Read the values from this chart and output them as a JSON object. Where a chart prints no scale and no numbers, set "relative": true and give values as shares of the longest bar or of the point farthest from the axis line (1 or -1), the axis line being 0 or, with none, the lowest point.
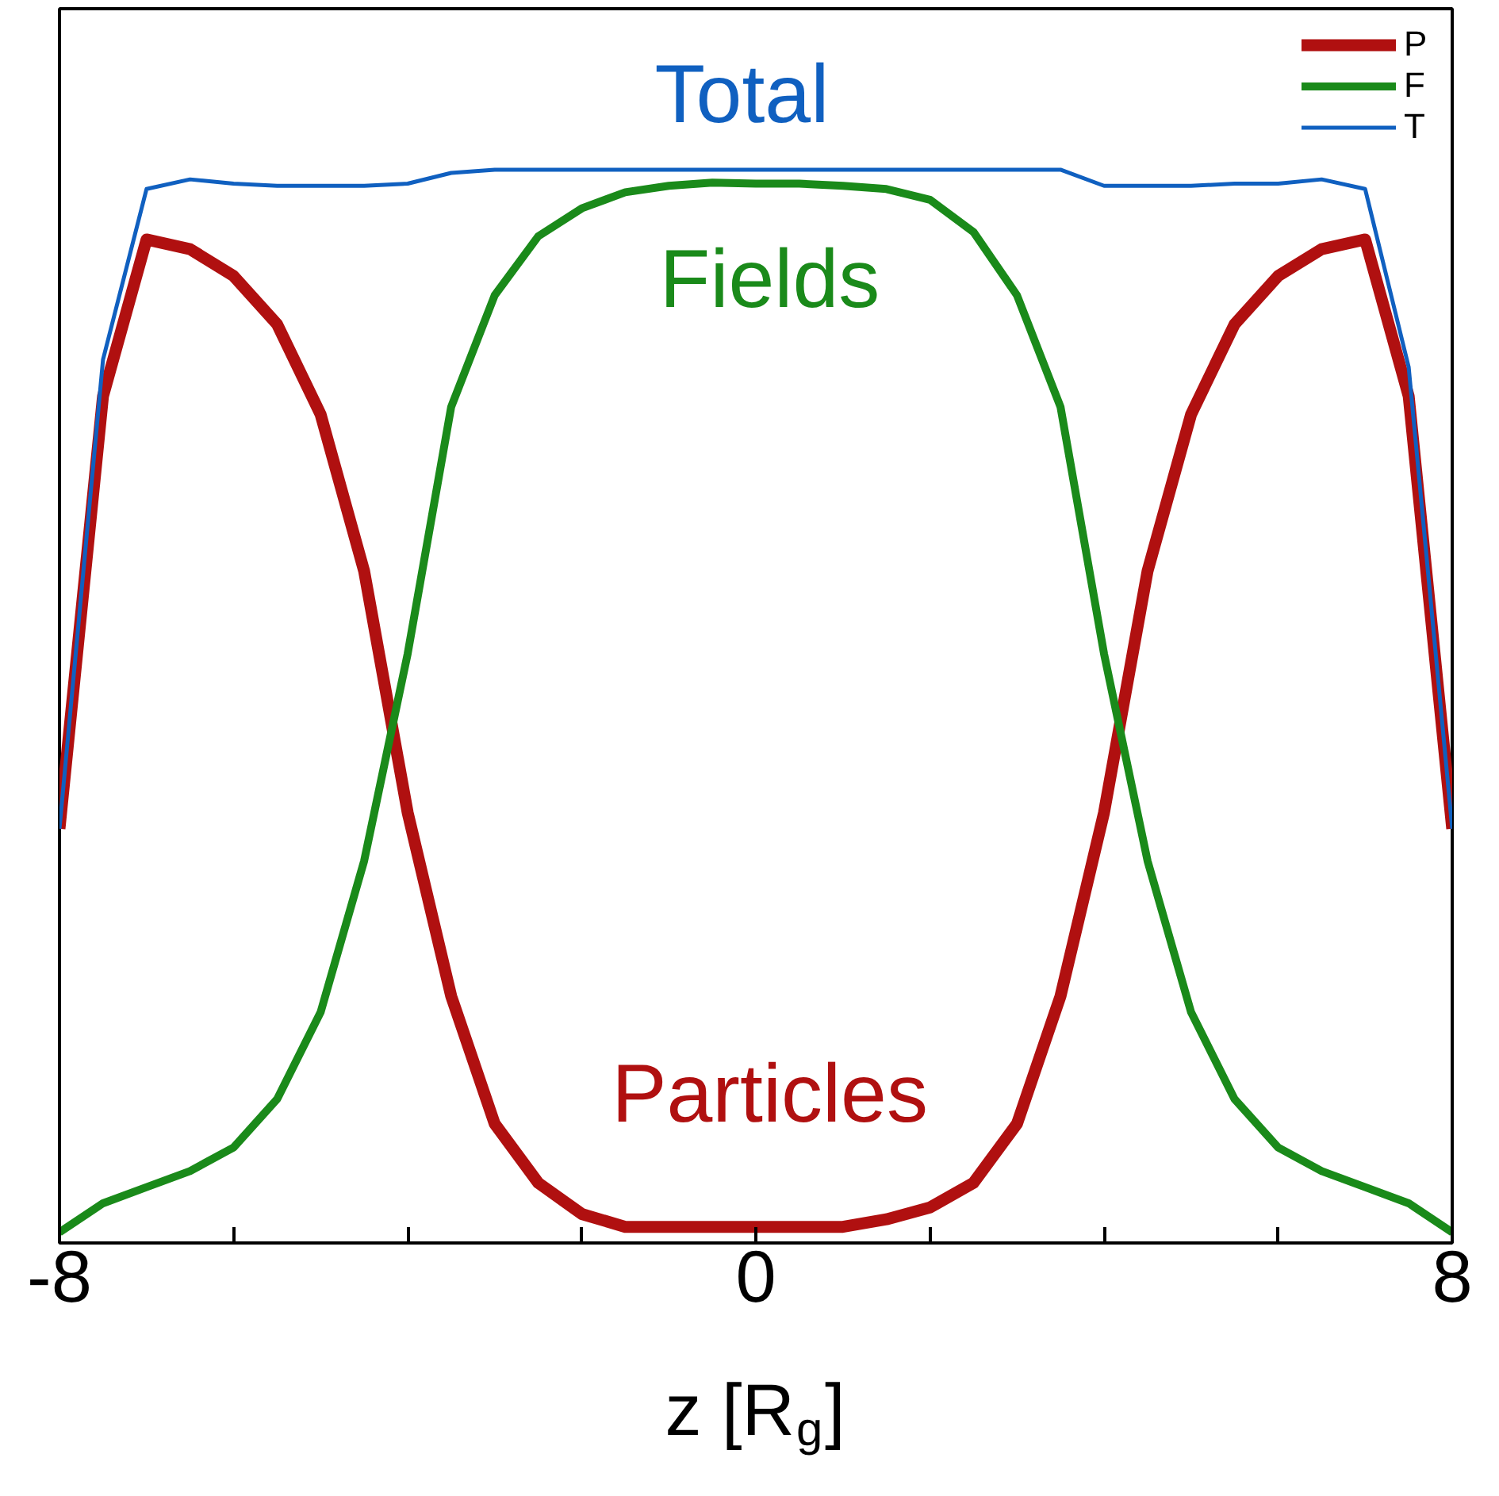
{
  "chart_data": {
    "type": "line",
    "relative": true,
    "xlabel": "z [R$_{g}$]",
    "x": [
      -8,
      -7.5,
      -7,
      -6.5,
      -6,
      -5.5,
      -5,
      -4.5,
      -4,
      -3.5,
      -3,
      -2.5,
      -2,
      -1.5,
      -1,
      -0.5,
      0,
      0.5,
      1,
      1.5,
      2,
      2.5,
      3,
      3.5,
      4,
      4.5,
      5,
      5.5,
      6,
      6.5,
      7,
      7.5,
      8
    ],
    "series": [
      {
        "name": "P",
        "color": "#b01010",
        "values": [
          0.386,
          0.789,
          0.935,
          0.926,
          0.901,
          0.856,
          0.772,
          0.626,
          0.401,
          0.23,
          0.111,
          0.056,
          0.027,
          0.015,
          0.015,
          0.015,
          0.015,
          0.015,
          0.015,
          0.022,
          0.033,
          0.056,
          0.111,
          0.23,
          0.401,
          0.626,
          0.772,
          0.856,
          0.901,
          0.926,
          0.935,
          0.789,
          0.386
        ]
      },
      {
        "name": "F",
        "color": "#1a8a1a",
        "values": [
          0.01,
          0.037,
          0.052,
          0.067,
          0.089,
          0.134,
          0.215,
          0.356,
          0.549,
          0.779,
          0.883,
          0.938,
          0.964,
          0.979,
          0.985,
          0.988,
          0.987,
          0.987,
          0.985,
          0.982,
          0.972,
          0.942,
          0.883,
          0.779,
          0.549,
          0.356,
          0.215,
          0.134,
          0.089,
          0.067,
          0.052,
          0.037,
          0.01
        ]
      },
      {
        "name": "T",
        "color": "#1060c0",
        "values": [
          0.386,
          0.823,
          0.982,
          0.991,
          0.987,
          0.985,
          0.985,
          0.985,
          0.987,
          0.997,
          1,
          1,
          1,
          1,
          1,
          1,
          1,
          1,
          1,
          1,
          1,
          1,
          1,
          1,
          0.985,
          0.985,
          0.985,
          0.987,
          0.987,
          0.991,
          0.982,
          0.816,
          0.386
        ]
      }
    ],
    "annotations": [
      "Particles",
      "Fields",
      "Total"
    ],
    "xlim": [
      -8,
      8
    ],
    "xticks": [
      -8,
      {
        "value": -6,
        "label": null
      },
      {
        "value": -4,
        "label": null
      },
      {
        "value": -2,
        "label": null
      },
      0,
      {
        "value": 2,
        "label": null
      },
      {
        "value": 4,
        "label": null
      },
      {
        "value": 6,
        "label": null
      },
      8
    ],
    "legend": "top right",
    "grid": false
  }
}
